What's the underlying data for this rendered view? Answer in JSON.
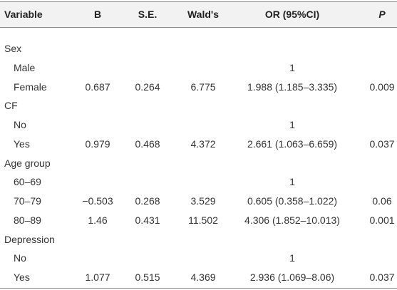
{
  "table": {
    "header": [
      "Variable",
      "B",
      "S.E.",
      "Wald's",
      "OR (95%CI)",
      "P"
    ],
    "rows": [
      {
        "variable": "Sex"
      },
      {
        "variable": "Male",
        "or": "1"
      },
      {
        "variable": "Female",
        "b": "0.687",
        "se": "0.264",
        "wald": "6.775",
        "or": "1.988 (1.185–3.335)",
        "p": "0.009"
      },
      {
        "variable": "CF"
      },
      {
        "variable": "No",
        "or": "1"
      },
      {
        "variable": "Yes",
        "b": "0.979",
        "se": "0.468",
        "wald": "4.372",
        "or": "2.661 (1.063–6.659)",
        "p": "0.037"
      },
      {
        "variable": "Age group"
      },
      {
        "variable": "60–69",
        "or": "1"
      },
      {
        "variable": "70–79",
        "b": "−0.503",
        "se": "0.268",
        "wald": "3.529",
        "or": "0.605 (0.358–1.022)",
        "p": "0.06"
      },
      {
        "variable": "80–89",
        "b": "1.46",
        "se": "0.431",
        "wald": "11.502",
        "or": "4.306 (1.852–10.013)",
        "p": "0.001"
      },
      {
        "variable": "Depression"
      },
      {
        "variable": "No",
        "or": "1"
      },
      {
        "variable": "Yes",
        "b": "1.077",
        "se": "0.515",
        "wald": "4.369",
        "or": "2.936 (1.069–8.06)",
        "p": "0.037"
      }
    ]
  }
}
